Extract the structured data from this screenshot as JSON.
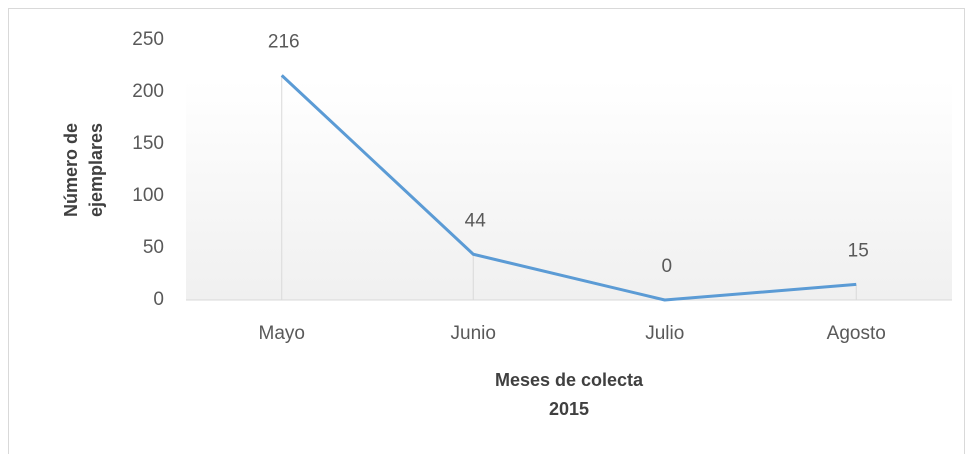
{
  "chart_data": {
    "type": "line",
    "categories": [
      "Mayo",
      "Junio",
      "Julio",
      "Agosto"
    ],
    "series": [
      {
        "name": "Número de ejemplares",
        "color": "#5b9bd5",
        "values": [
          216,
          44,
          0,
          15
        ]
      }
    ],
    "ylim": [
      0,
      250
    ],
    "yticks": [
      0,
      50,
      100,
      150,
      200,
      250
    ],
    "xlabel": [
      "Meses de colecta",
      "2015"
    ],
    "ylabel": [
      "Número de",
      "ejemplares"
    ],
    "drop_lines": true,
    "data_labels": true
  }
}
